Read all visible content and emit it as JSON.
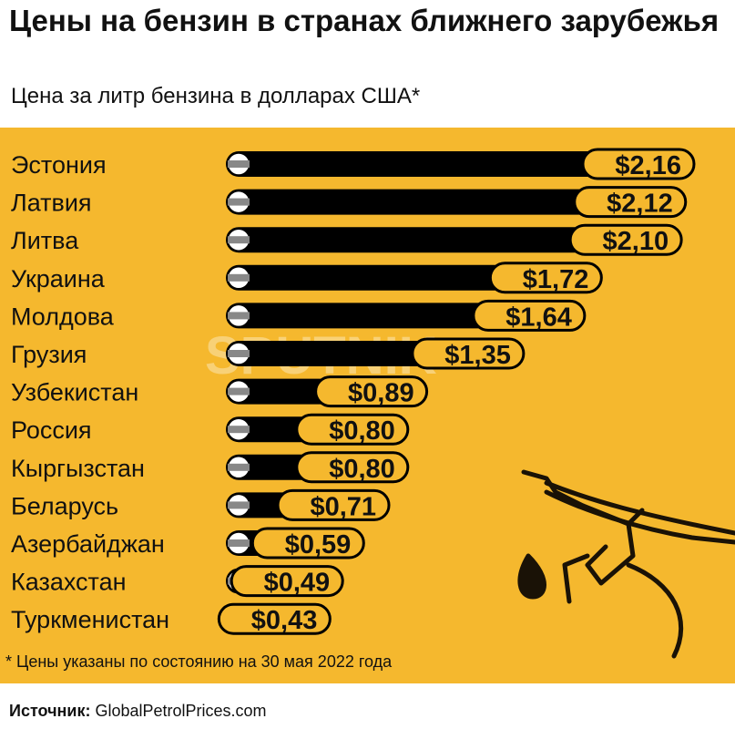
{
  "chart_data": {
    "type": "bar",
    "title": "Цены на бензин в странах ближнего зарубежья",
    "subtitle": "Цена за литр бензина в долларах США*",
    "categories": [
      "Эстония",
      "Латвия",
      "Литва",
      "Украина",
      "Молдова",
      "Грузия",
      "Узбекистан",
      "Россия",
      "Кыргызстан",
      "Беларусь",
      "Азербайджан",
      "Казахстан",
      "Туркменистан"
    ],
    "values": [
      2.16,
      2.12,
      2.1,
      1.72,
      1.64,
      1.35,
      0.89,
      0.8,
      0.8,
      0.71,
      0.59,
      0.49,
      0.43
    ],
    "value_labels": [
      "$2,16",
      "$2,12",
      "$2,10",
      "$1,72",
      "$1,64",
      "$1,35",
      "$0,89",
      "$0,80",
      "$0,80",
      "$0,71",
      "$0,59",
      "$0,49",
      "$0,43"
    ],
    "xlabel": "",
    "ylabel": "",
    "xlim": [
      0,
      2.16
    ],
    "grid": false,
    "legend": "none"
  },
  "footnote": "* Цены указаны по состоянию на 30 мая 2022 года",
  "source_label": "Источник:",
  "source_value": "GlobalPetrolPrices.com",
  "watermark": "SPUTNIK",
  "colors": {
    "background": "#f5b82e",
    "bar": "#000000",
    "label_bg": "#f5b82e",
    "text": "#111111"
  }
}
